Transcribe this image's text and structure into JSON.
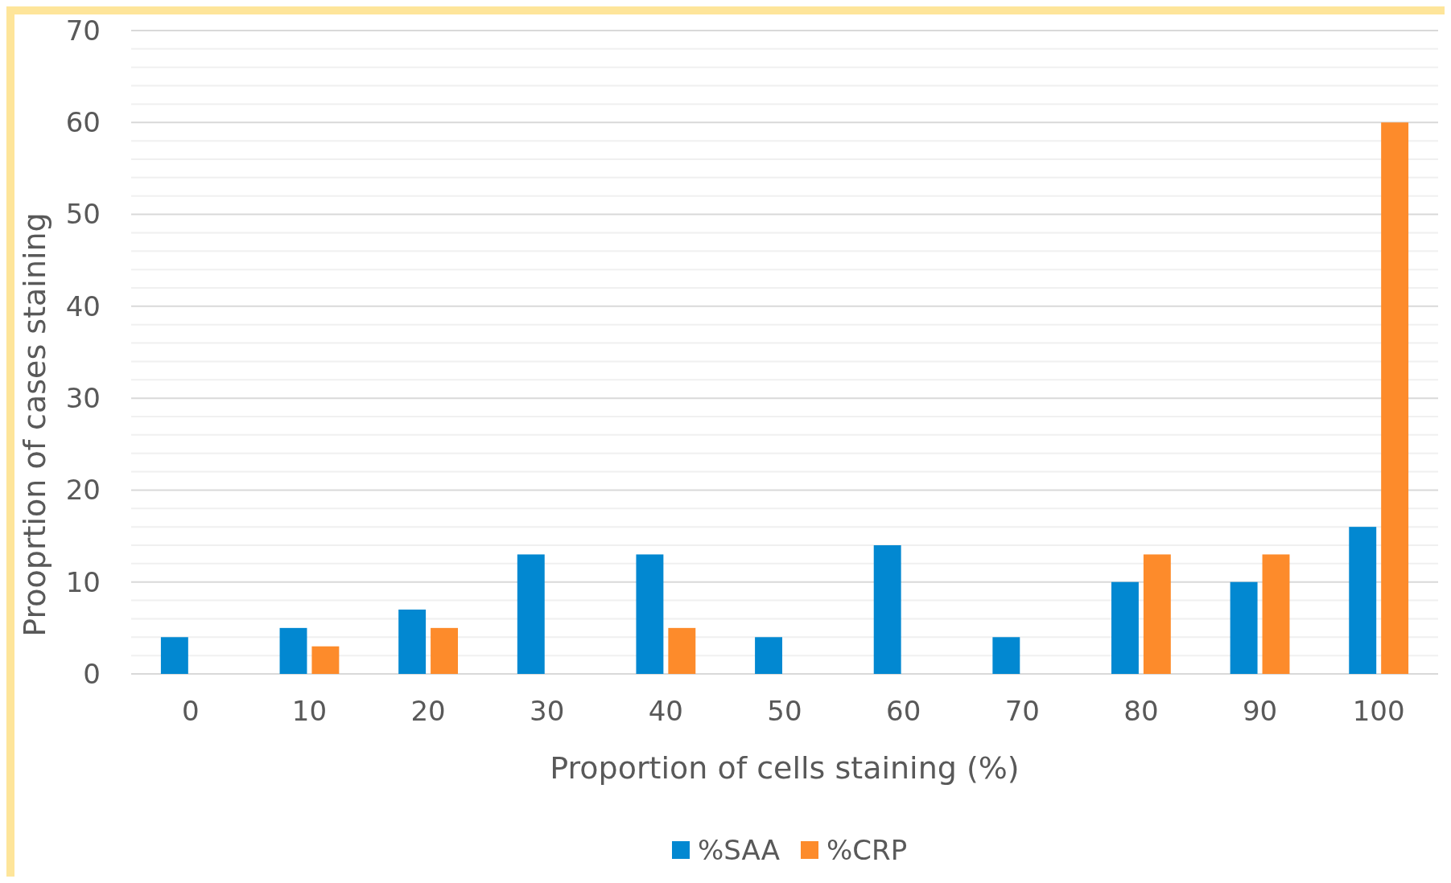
{
  "chart_data": {
    "type": "bar",
    "xlabel": "Proportion of cells staining (%)",
    "ylabel": "Prooprtion of cases staining",
    "categories": [
      "0",
      "10",
      "20",
      "30",
      "40",
      "50",
      "60",
      "70",
      "80",
      "90",
      "100"
    ],
    "series": [
      {
        "name": "%SAA",
        "color": "#0288d1",
        "values": [
          4,
          5,
          7,
          13,
          13,
          4,
          14,
          4,
          10,
          10,
          16
        ]
      },
      {
        "name": "%CRP",
        "color": "#fd8b2b",
        "values": [
          0,
          3,
          5,
          0,
          5,
          0,
          0,
          0,
          13,
          13,
          60
        ]
      }
    ],
    "ylim": [
      0,
      70
    ],
    "yticks": [
      0,
      {
        "value": 2,
        "label": null
      },
      {
        "value": 4,
        "label": null
      },
      {
        "value": 6,
        "label": null
      },
      {
        "value": 8,
        "label": null
      },
      10,
      {
        "value": 12,
        "label": null
      },
      {
        "value": 14,
        "label": null
      },
      {
        "value": 16,
        "label": null
      },
      {
        "value": 18,
        "label": null
      },
      20,
      {
        "value": 22,
        "label": null
      },
      {
        "value": 24,
        "label": null
      },
      {
        "value": 26,
        "label": null
      },
      {
        "value": 28,
        "label": null
      },
      30,
      {
        "value": 32,
        "label": null
      },
      {
        "value": 34,
        "label": null
      },
      {
        "value": 36,
        "label": null
      },
      {
        "value": 38,
        "label": null
      },
      40,
      {
        "value": 42,
        "label": null
      },
      {
        "value": 44,
        "label": null
      },
      {
        "value": 46,
        "label": null
      },
      {
        "value": 48,
        "label": null
      },
      50,
      {
        "value": 52,
        "label": null
      },
      {
        "value": 54,
        "label": null
      },
      {
        "value": 56,
        "label": null
      },
      {
        "value": 58,
        "label": null
      },
      60,
      {
        "value": 62,
        "label": null
      },
      {
        "value": 64,
        "label": null
      },
      {
        "value": 66,
        "label": null
      },
      {
        "value": 68,
        "label": null
      },
      70
    ],
    "grid": true,
    "legend": "bottom"
  }
}
